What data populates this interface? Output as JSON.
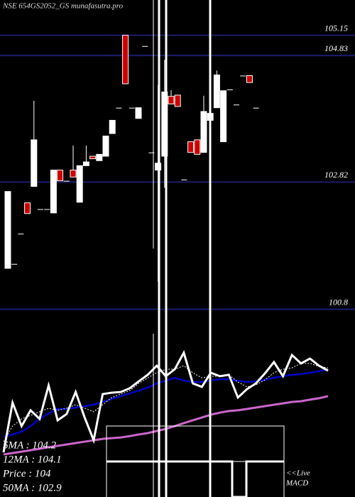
{
  "chart_data": [
    {
      "type": "candlestick",
      "title": "NSE 654GS2052_GS munafasutra.pro",
      "ylim": [
        97.82,
        105.71
      ],
      "yticks": [
        105.15,
        104.83,
        102.82,
        100.8
      ],
      "up_color": "#ffffff",
      "down_color": "#cc0000",
      "grid_color": "#1c1c6e",
      "open": [
        101.45,
        101.52,
        102.0,
        102.49,
        102.75,
        102.39,
        102.39,
        102.33,
        103.01,
        102.84,
        103.01,
        102.5,
        103.08,
        103.23,
        103.16,
        103.23,
        103.59,
        104.0,
        105.15,
        104.0,
        103.83,
        104.98,
        103.29,
        103.01,
        103.23,
        104.18,
        104.2,
        102.86,
        103.46,
        103.49,
        103.29,
        103.8,
        104.0,
        103.46,
        104.29,
        104.05,
        104.51,
        104.51,
        104.0
      ],
      "high": [
        102.67,
        101.52,
        102.0,
        102.49,
        104.11,
        102.39,
        102.39,
        103.01,
        103.01,
        102.84,
        103.4,
        103.08,
        103.4,
        103.23,
        103.26,
        103.55,
        103.8,
        104.0,
        105.15,
        104.0,
        104.0,
        104.98,
        103.29,
        104.36,
        104.76,
        104.28,
        104.2,
        102.86,
        103.46,
        103.49,
        104.19,
        104.25,
        104.59,
        104.27,
        104.29,
        104.05,
        104.51,
        104.51,
        104.0
      ],
      "low": [
        101.45,
        101.52,
        102.0,
        102.32,
        102.75,
        102.39,
        102.39,
        102.33,
        102.84,
        102.84,
        102.9,
        102.5,
        103.08,
        103.19,
        103.16,
        103.23,
        103.59,
        104.0,
        104.38,
        104.0,
        103.83,
        104.98,
        103.29,
        101.24,
        102.73,
        104.06,
        104.02,
        102.86,
        103.29,
        103.26,
        103.29,
        103.57,
        104.0,
        103.46,
        104.29,
        104.05,
        104.51,
        104.4,
        104.0
      ],
      "close": [
        102.67,
        101.52,
        102.0,
        102.32,
        103.49,
        102.39,
        102.39,
        103.01,
        102.84,
        102.84,
        102.9,
        103.08,
        103.14,
        103.19,
        103.26,
        103.55,
        103.8,
        104.0,
        104.38,
        104.0,
        104.0,
        104.98,
        103.29,
        103.12,
        104.25,
        104.06,
        104.02,
        102.86,
        103.29,
        103.26,
        103.94,
        103.91,
        104.52,
        104.27,
        104.29,
        104.05,
        104.51,
        104.4,
        104.0
      ]
    },
    {
      "type": "line",
      "ylim": [
        99.78,
        105.59
      ],
      "series": [
        {
          "color": "#cc66cc",
          "values": [
            100.39,
            100.45,
            100.51,
            100.57,
            100.63,
            100.7,
            100.76,
            100.82,
            100.88,
            100.94,
            101.0,
            101.06,
            101.09,
            101.12,
            101.18,
            101.25,
            101.31,
            101.4,
            101.49,
            101.61,
            101.74,
            101.86,
            101.98,
            102.1,
            102.19,
            102.26,
            102.29,
            102.35,
            102.41,
            102.47,
            102.53,
            102.59,
            102.65,
            102.68,
            102.75,
            102.81,
            102.9
          ]
        },
        {
          "color": "#0000cc",
          "values": [
            101.15,
            101.25,
            101.37,
            101.61,
            101.92,
            102.16,
            102.35,
            102.35,
            102.41,
            102.47,
            102.53,
            102.65,
            102.78,
            102.9,
            103.02,
            103.14,
            103.27,
            103.45,
            103.57,
            103.69,
            103.57,
            103.51,
            103.51,
            103.57,
            103.63,
            103.63,
            103.57,
            103.51,
            103.54,
            103.6,
            103.69,
            103.76,
            103.82,
            103.85,
            103.91,
            103.97,
            104.06
          ]
        },
        {
          "color": "#ffffff",
          "dashed": true,
          "values": [
            100.94,
            101.61,
            101.92,
            102.07,
            102.23,
            102.38,
            102.29,
            102.38,
            102.53,
            102.38,
            102.23,
            102.53,
            102.84,
            102.99,
            103.14,
            103.45,
            103.69,
            103.91,
            104.06,
            104.06,
            104.21,
            103.91,
            103.69,
            103.76,
            103.76,
            103.82,
            103.51,
            103.3,
            103.39,
            103.6,
            103.91,
            104.06,
            104.12,
            104.31,
            104.31,
            104.18,
            104.12
          ]
        },
        {
          "color": "#ffffff",
          "values": [
            100.48,
            102.62,
            101.61,
            102.29,
            101.92,
            103.36,
            101.86,
            102.13,
            103.08,
            101.98,
            101.0,
            102.99,
            103.05,
            103.08,
            103.24,
            103.54,
            103.82,
            104.21,
            103.76,
            104.06,
            104.77,
            103.45,
            103.3,
            103.91,
            103.76,
            103.82,
            102.84,
            103.2,
            103.45,
            103.88,
            104.37,
            103.76,
            104.67,
            104.31,
            104.52,
            104.21,
            104.0
          ]
        }
      ],
      "legend": [
        "5MA : 104.2",
        "12MA : 104.1",
        "Price   : 104",
        "50MA : 102.9"
      ],
      "annotation": [
        "<<Live",
        "MACD"
      ]
    }
  ]
}
